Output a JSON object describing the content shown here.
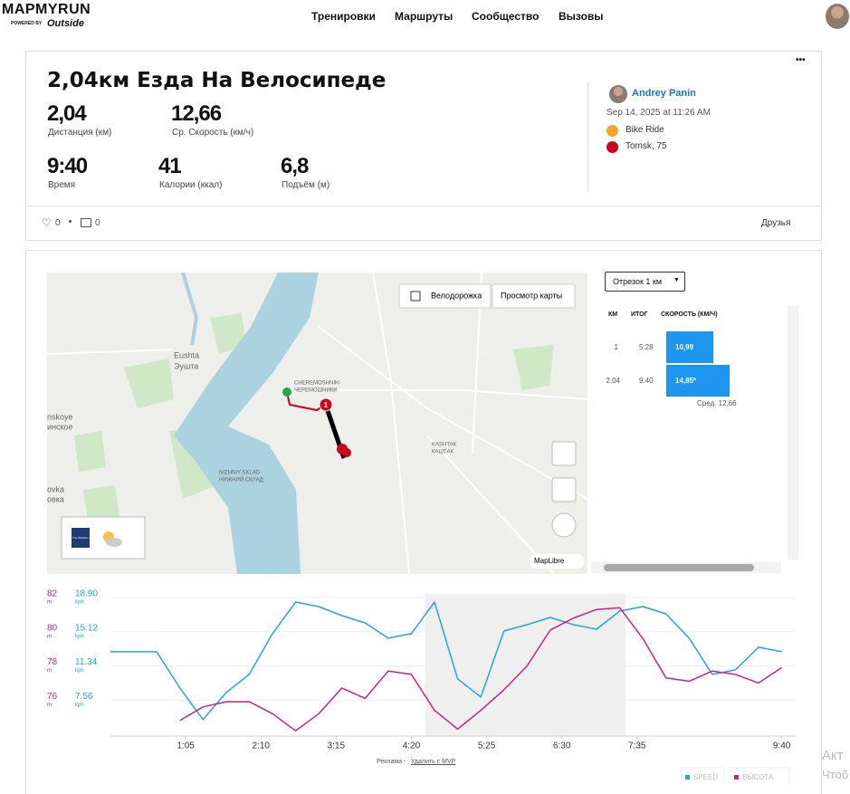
{
  "header": {
    "logo": "MAPMYRUN",
    "powered": "POWERED BY",
    "brand": "Outside",
    "nav": [
      "Тренировки",
      "Маршруты",
      "Сообщество",
      "Вызовы"
    ]
  },
  "workout": {
    "title": "2,04км Езда На Велосипеде",
    "menu": "•••",
    "stats": [
      {
        "value": "2,04",
        "label": "Дистанция (км)"
      },
      {
        "value": "12,66",
        "label": "Ср. Скорость (км/ч)"
      },
      {
        "value": "9:40",
        "label": "Время"
      },
      {
        "value": "41",
        "label": "Калории (ккал)"
      },
      {
        "value": "6,8",
        "label": "Подъём (м)"
      }
    ],
    "user": "Andrey Panin",
    "date": "Sep 14, 2025 at 11:26 AM",
    "activity": "Bike Ride",
    "location": "Tomsk, 75",
    "likes": "0",
    "comments": "0",
    "privacy": "Друзья"
  },
  "map": {
    "bike_lane": "Велодорожка",
    "view": "Просмотр карты",
    "attribution": "MapLibre",
    "weather": "The Weather Channel",
    "labels": [
      "Eushta",
      "Эушта",
      "CHEREMOSHNIKI",
      "ЧЕРЕМОШНИКИ",
      "KASHTAK",
      "КАШТАК",
      "NIZHNIY SKLAD",
      "НИЖНИЙ СКЛАД",
      "nskoye",
      "инское",
      "ovka",
      "овка"
    ],
    "marker": "1"
  },
  "splits": {
    "selector": "Отрезок 1 км",
    "headers": [
      "КМ",
      "ИТОГ",
      "СКОРОСТЬ (КМ/Ч)"
    ],
    "rows": [
      {
        "km": "1",
        "time": "5:28",
        "speed": 10.99,
        "speed_label": "10,99"
      },
      {
        "km": "2,04",
        "time": "9:40",
        "speed": 14.85,
        "speed_label": "14,85*"
      }
    ],
    "average": "Сред. 12,66"
  },
  "chart": {
    "type": "line",
    "x": [
      0,
      20,
      40,
      60,
      80,
      100,
      120,
      140,
      160,
      180,
      200,
      220,
      240,
      260,
      280,
      300,
      320,
      340,
      360,
      380,
      400,
      420,
      440,
      460,
      480,
      500,
      520,
      540,
      560,
      580
    ],
    "xlim": [
      0,
      585
    ],
    "xticks": [
      {
        "value": 65,
        "label": "1:05"
      },
      {
        "value": 130,
        "label": "2:10"
      },
      {
        "value": 195,
        "label": "3:15"
      },
      {
        "value": 260,
        "label": "4:20"
      },
      {
        "value": 325,
        "label": "5:25"
      },
      {
        "value": 390,
        "label": "6:30"
      },
      {
        "value": 455,
        "label": "7:35"
      },
      {
        "value": 580,
        "label": "9:40"
      }
    ],
    "highlight": [
      272,
      445
    ],
    "ylim": [
      3.78,
      18.9
    ],
    "yticks": [
      {
        "value": 7.56,
        "label": "7.56"
      },
      {
        "value": 11.34,
        "label": "11.34"
      },
      {
        "value": 15.12,
        "label": "15.12"
      },
      {
        "value": 18.9,
        "label": "18.90"
      }
    ],
    "y_unit": "kph",
    "y2lim": [
      74,
      82
    ],
    "y2ticks": [
      76,
      78,
      80,
      82
    ],
    "y2_unit": "m",
    "grid": true,
    "series": [
      {
        "name": "SPEED",
        "color": "#27a3de",
        "values": [
          12.9,
          12.9,
          12.9,
          8.9,
          5.4,
          8.4,
          10.4,
          14.9,
          18.4,
          17.9,
          16.9,
          16.1,
          14.4,
          14.9,
          18.4,
          9.9,
          7.9,
          15.2,
          15.9,
          16.7,
          15.9,
          15.4,
          17.4,
          17.9,
          17.1,
          14.4,
          10.4,
          10.9,
          13.4,
          12.9
        ]
      },
      {
        "name": "ВЫСОТА",
        "color": "#c8237f",
        "axis": "y2",
        "values": [
          null,
          null,
          null,
          74.8,
          75.6,
          75.9,
          75.9,
          75.2,
          74.2,
          75.2,
          76.7,
          76.1,
          77.7,
          77.5,
          75.4,
          74.3,
          75.4,
          76.6,
          78.0,
          80.1,
          80.8,
          81.3,
          81.4,
          79.6,
          77.3,
          77.1,
          77.7,
          77.5,
          77.0,
          77.9
        ]
      }
    ]
  },
  "footer": {
    "ad": "Реклама -",
    "remove": "Удалить с MVP",
    "side1": "Акт",
    "side2": "Чтоб"
  }
}
